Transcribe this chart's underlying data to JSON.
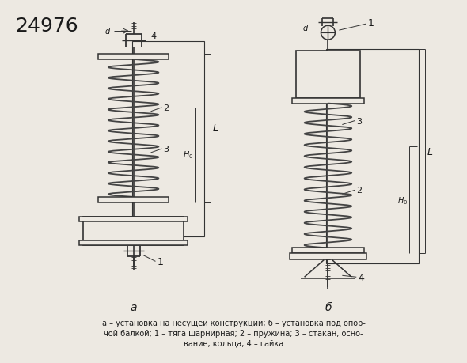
{
  "title_number": "24976",
  "bg_color": "#ede9e2",
  "line_color": "#333333",
  "spring_color": "#444444",
  "text_color": "#1a1a1a",
  "caption_line1": "а – установка на несущей конструкции; б – установка под опор-",
  "caption_line2": "чой балкой; 1 – тяга шарнирная; 2 – пружина; 3 – стакан, осно-",
  "caption_line3": "вание, кольца; 4 – гайка"
}
